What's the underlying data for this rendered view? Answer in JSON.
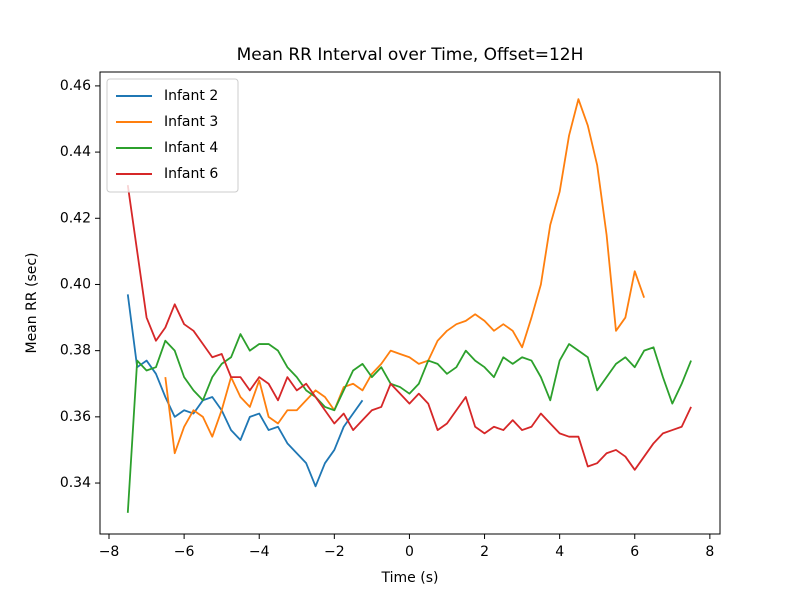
{
  "chart_data": {
    "type": "line",
    "title": "Mean RR Interval over Time, Offset=12H",
    "x_label": "Time (s)",
    "y_label": "Mean RR (sec)",
    "x": [
      -7.5,
      -7.25,
      -7,
      -6.75,
      -6.5,
      -6.25,
      -6,
      -5.75,
      -5.5,
      -5.25,
      -5,
      -4.75,
      -4.5,
      -4.25,
      -4,
      -3.75,
      -3.5,
      -3.25,
      -3,
      -2.75,
      -2.5,
      -2.25,
      -2,
      -1.75,
      -1.5,
      -1.25,
      -1,
      -0.75,
      -0.5,
      -0.25,
      0,
      0.25,
      0.5,
      0.75,
      1,
      1.25,
      1.5,
      1.75,
      2,
      2.25,
      2.5,
      2.75,
      3,
      3.25,
      3.5,
      3.75,
      4,
      4.25,
      4.5,
      4.75,
      5,
      5.25,
      5.5,
      5.75,
      6,
      6.25,
      6.5,
      6.75,
      7,
      7.25,
      7.5
    ],
    "series": [
      {
        "name": "Infant 2",
        "color": "#1f77b4",
        "values": [
          0.397,
          0.375,
          0.377,
          0.373,
          0.366,
          0.36,
          0.362,
          0.361,
          0.365,
          0.366,
          0.362,
          0.356,
          0.353,
          0.36,
          0.361,
          0.356,
          0.357,
          0.352,
          0.349,
          0.346,
          0.339,
          0.346,
          0.35,
          0.357,
          0.361,
          0.365,
          null,
          null,
          null,
          null,
          null,
          null,
          null,
          null,
          null,
          null,
          null,
          null,
          null,
          null,
          null,
          null,
          null,
          null,
          null,
          null,
          null,
          null,
          null,
          null,
          null,
          null,
          null,
          null,
          null,
          null,
          null,
          null,
          null,
          null,
          null
        ]
      },
      {
        "name": "Infant 3",
        "color": "#ff7f0e",
        "values": [
          null,
          null,
          null,
          null,
          0.372,
          0.349,
          0.357,
          0.362,
          0.36,
          0.354,
          0.362,
          0.372,
          0.366,
          0.363,
          0.371,
          0.36,
          0.358,
          0.362,
          0.362,
          0.365,
          0.368,
          0.366,
          0.362,
          0.369,
          0.37,
          0.368,
          0.373,
          0.376,
          0.38,
          0.379,
          0.378,
          0.376,
          0.377,
          0.383,
          0.386,
          0.388,
          0.389,
          0.391,
          0.389,
          0.386,
          0.388,
          0.386,
          0.381,
          0.39,
          0.4,
          0.418,
          0.428,
          0.445,
          0.456,
          0.448,
          0.436,
          0.415,
          0.386,
          0.39,
          0.404,
          0.396,
          null,
          null,
          null,
          null,
          null
        ]
      },
      {
        "name": "Infant 4",
        "color": "#2ca02c",
        "values": [
          0.331,
          0.377,
          0.374,
          0.375,
          0.383,
          0.38,
          0.372,
          0.368,
          0.365,
          0.372,
          0.376,
          0.378,
          0.385,
          0.38,
          0.382,
          0.382,
          0.38,
          0.375,
          0.372,
          0.368,
          0.366,
          0.363,
          0.362,
          0.368,
          0.374,
          0.376,
          0.372,
          0.375,
          0.37,
          0.369,
          0.367,
          0.37,
          0.377,
          0.376,
          0.373,
          0.375,
          0.38,
          0.377,
          0.375,
          0.372,
          0.378,
          0.376,
          0.378,
          0.377,
          0.372,
          0.365,
          0.377,
          0.382,
          0.38,
          0.378,
          0.368,
          0.372,
          0.376,
          0.378,
          0.375,
          0.38,
          0.381,
          0.372,
          0.364,
          0.37,
          0.377
        ]
      },
      {
        "name": "Infant 6",
        "color": "#d62728",
        "values": [
          0.43,
          0.41,
          0.39,
          0.383,
          0.387,
          0.394,
          0.388,
          0.386,
          0.382,
          0.378,
          0.379,
          0.372,
          0.372,
          0.368,
          0.372,
          0.37,
          0.365,
          0.372,
          0.368,
          0.37,
          0.366,
          0.362,
          0.358,
          0.361,
          0.356,
          0.359,
          0.362,
          0.363,
          0.37,
          0.367,
          0.364,
          0.367,
          0.364,
          0.356,
          0.358,
          0.362,
          0.366,
          0.357,
          0.355,
          0.357,
          0.356,
          0.359,
          0.356,
          0.357,
          0.361,
          0.358,
          0.355,
          0.354,
          0.354,
          0.345,
          0.346,
          0.349,
          0.35,
          0.348,
          0.344,
          0.348,
          0.352,
          0.355,
          0.356,
          0.357,
          0.363
        ]
      }
    ],
    "xlim": [
      -8.24,
      8.27
    ],
    "ylim": [
      0.3246,
      0.4642
    ],
    "xticks": [
      {
        "value": -8,
        "label": "−8"
      },
      {
        "value": -6,
        "label": "−6"
      },
      {
        "value": -4,
        "label": "−4"
      },
      {
        "value": -2,
        "label": "−2"
      },
      0,
      2,
      4,
      6,
      8
    ],
    "yticks": [
      0.34,
      0.36,
      0.38,
      {
        "value": 0.4,
        "label": "0.40"
      },
      0.42,
      0.44,
      0.46
    ],
    "legend": "upper left"
  }
}
